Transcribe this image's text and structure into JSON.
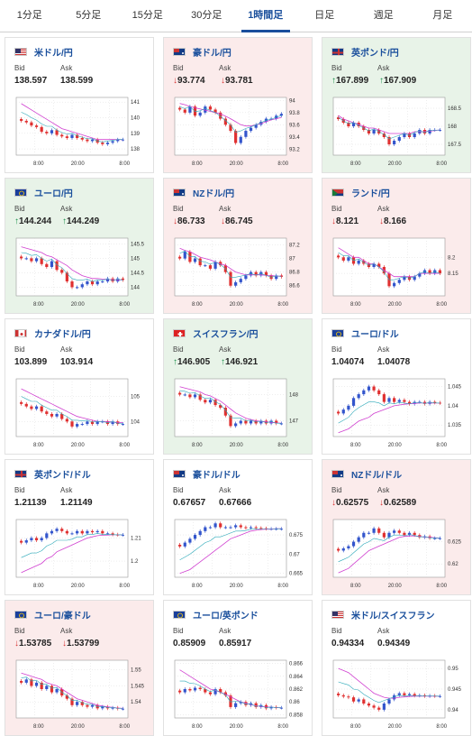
{
  "tabs": [
    "1分足",
    "5分足",
    "15分足",
    "30分足",
    "1時間足",
    "日足",
    "週足",
    "月足"
  ],
  "active_tab": "1時間足",
  "labels": {
    "bid": "Bid",
    "ask": "Ask"
  },
  "colors": {
    "up": "#19904a",
    "down": "#d83030",
    "ma": "#d040d0",
    "candle_up": "#3355cc",
    "candle_down": "#e03030"
  },
  "cards": [
    {
      "title": "米ドル/円",
      "trend": "flat",
      "bid": "138.597",
      "ask": "138.599",
      "flag": "us-flag",
      "chart_data": {
        "type": "candlestick",
        "x_ticks": [
          "8:00",
          "20:00",
          "8:00"
        ],
        "y_ticks": [
          "141",
          "140",
          "139",
          "138"
        ],
        "y_range": [
          137.6,
          141.3
        ],
        "closes": [
          139.8,
          139.7,
          139.5,
          139.4,
          139.1,
          139.0,
          139.2,
          138.9,
          138.8,
          138.7,
          138.9,
          138.7,
          138.6,
          138.5,
          138.6,
          138.4,
          138.3,
          138.4,
          138.5,
          138.6,
          138.6
        ],
        "ma": [
          140.9,
          140.7,
          140.5,
          140.3,
          140.1,
          139.9,
          139.7,
          139.5,
          139.3,
          139.2,
          139.1,
          139.0,
          138.9,
          138.8,
          138.7,
          138.6,
          138.6,
          138.6,
          138.6,
          138.6,
          138.6
        ]
      }
    },
    {
      "title": "豪ドル/円",
      "trend": "down",
      "bid": "93.774",
      "ask": "93.781",
      "flag": "au-flag",
      "chart_data": {
        "type": "candlestick",
        "x_ticks": [
          "8:00",
          "20:00",
          "8:00"
        ],
        "y_ticks": [
          "94",
          "93.8",
          "93.6",
          "93.4",
          "93.2"
        ],
        "y_range": [
          93.1,
          94.05
        ],
        "closes": [
          93.85,
          93.8,
          93.9,
          93.75,
          93.8,
          93.9,
          93.85,
          93.8,
          93.7,
          93.6,
          93.5,
          93.3,
          93.4,
          93.5,
          93.55,
          93.6,
          93.65,
          93.7,
          93.7,
          93.75,
          93.78
        ],
        "ma": [
          93.95,
          93.93,
          93.9,
          93.88,
          93.86,
          93.84,
          93.82,
          93.8,
          93.78,
          93.74,
          93.7,
          93.65,
          93.6,
          93.58,
          93.58,
          93.6,
          93.62,
          93.65,
          93.68,
          93.7,
          93.72
        ]
      }
    },
    {
      "title": "英ポンド/円",
      "trend": "up",
      "bid": "167.899",
      "ask": "167.909",
      "flag": "uk-flag",
      "chart_data": {
        "type": "candlestick",
        "x_ticks": [
          "8:00",
          "20:00",
          "8:00"
        ],
        "y_ticks": [
          "168.5",
          "168",
          "167.5"
        ],
        "y_range": [
          167.2,
          168.8
        ],
        "closes": [
          168.2,
          168.1,
          168.0,
          168.1,
          168.0,
          167.9,
          167.8,
          167.9,
          167.8,
          167.7,
          167.5,
          167.6,
          167.7,
          167.8,
          167.7,
          167.8,
          167.9,
          167.8,
          167.9,
          167.9,
          167.9
        ],
        "ma": [
          168.3,
          168.2,
          168.15,
          168.1,
          168.05,
          168.0,
          167.95,
          167.95,
          167.9,
          167.85,
          167.8,
          167.8,
          167.8,
          167.8,
          167.8,
          167.85,
          167.85,
          167.85,
          167.87,
          167.88,
          167.9
        ]
      }
    },
    {
      "title": "ユーロ/円",
      "trend": "up",
      "bid": "144.244",
      "ask": "144.249",
      "flag": "eu-flag",
      "chart_data": {
        "type": "candlestick",
        "x_ticks": [
          "8:00",
          "20:00",
          "8:00"
        ],
        "y_ticks": [
          "145.5",
          "145",
          "144.5",
          "144"
        ],
        "y_range": [
          143.7,
          145.7
        ],
        "closes": [
          145.0,
          145.0,
          144.9,
          145.0,
          144.8,
          144.7,
          144.9,
          144.6,
          144.5,
          144.2,
          144.0,
          144.0,
          144.1,
          144.2,
          144.1,
          144.2,
          144.2,
          144.3,
          144.2,
          144.3,
          144.25
        ],
        "ma": [
          145.4,
          145.35,
          145.3,
          145.25,
          145.2,
          145.1,
          145.05,
          144.95,
          144.85,
          144.75,
          144.6,
          144.5,
          144.4,
          144.35,
          144.3,
          144.3,
          144.28,
          144.27,
          144.26,
          144.25,
          144.25
        ]
      }
    },
    {
      "title": "NZドル/円",
      "trend": "down",
      "bid": "86.733",
      "ask": "86.745",
      "flag": "nz-flag",
      "chart_data": {
        "type": "candlestick",
        "x_ticks": [
          "8:00",
          "20:00",
          "8:00"
        ],
        "y_ticks": [
          "87.2",
          "87",
          "86.8",
          "86.6"
        ],
        "y_range": [
          86.45,
          87.3
        ],
        "closes": [
          87.0,
          87.1,
          86.95,
          87.0,
          86.9,
          86.9,
          86.85,
          86.95,
          86.9,
          86.8,
          86.6,
          86.65,
          86.7,
          86.75,
          86.8,
          86.75,
          86.8,
          86.75,
          86.7,
          86.75,
          86.73
        ],
        "ma": [
          87.15,
          87.12,
          87.1,
          87.06,
          87.02,
          87.0,
          86.98,
          86.95,
          86.92,
          86.9,
          86.85,
          86.8,
          86.78,
          86.76,
          86.76,
          86.76,
          86.76,
          86.75,
          86.75,
          86.74,
          86.74
        ]
      }
    },
    {
      "title": "ランド/円",
      "trend": "down",
      "bid": "8.121",
      "ask": "8.166",
      "flag": "za-flag",
      "chart_data": {
        "type": "candlestick",
        "x_ticks": [
          "8:00",
          "20:00",
          "8:00"
        ],
        "y_ticks": [
          "8.2",
          "8.15"
        ],
        "y_range": [
          8.08,
          8.26
        ],
        "closes": [
          8.2,
          8.19,
          8.2,
          8.18,
          8.19,
          8.18,
          8.17,
          8.18,
          8.17,
          8.15,
          8.11,
          8.12,
          8.13,
          8.14,
          8.13,
          8.14,
          8.15,
          8.16,
          8.15,
          8.16,
          8.15
        ],
        "ma": [
          8.23,
          8.22,
          8.21,
          8.2,
          8.2,
          8.19,
          8.18,
          8.18,
          8.17,
          8.16,
          8.15,
          8.14,
          8.14,
          8.14,
          8.14,
          8.14,
          8.15,
          8.15,
          8.15,
          8.15,
          8.15
        ]
      }
    },
    {
      "title": "カナダドル/円",
      "trend": "flat",
      "bid": "103.899",
      "ask": "103.914",
      "flag": "ca-flag",
      "chart_data": {
        "type": "candlestick",
        "x_ticks": [
          "8:00",
          "20:00",
          "8:00"
        ],
        "y_ticks": [
          "105",
          "104"
        ],
        "y_range": [
          103.4,
          105.7
        ],
        "closes": [
          104.7,
          104.6,
          104.5,
          104.6,
          104.4,
          104.3,
          104.2,
          104.3,
          104.1,
          104.0,
          103.8,
          103.9,
          103.9,
          104.0,
          103.9,
          104.0,
          104.0,
          103.9,
          104.0,
          103.9,
          103.9
        ],
        "ma": [
          105.3,
          105.2,
          105.1,
          105.0,
          104.9,
          104.8,
          104.7,
          104.6,
          104.5,
          104.4,
          104.3,
          104.2,
          104.15,
          104.1,
          104.05,
          104.0,
          104.0,
          104.0,
          103.98,
          103.96,
          103.95
        ]
      }
    },
    {
      "title": "スイスフラン/円",
      "trend": "up",
      "bid": "146.905",
      "ask": "146.921",
      "flag": "ch-flag",
      "chart_data": {
        "type": "candlestick",
        "x_ticks": [
          "8:00",
          "20:00",
          "8:00"
        ],
        "y_ticks": [
          "148",
          "147"
        ],
        "y_range": [
          146.4,
          148.6
        ],
        "closes": [
          148.0,
          148.0,
          147.9,
          148.0,
          147.8,
          147.7,
          147.8,
          147.6,
          147.5,
          147.2,
          146.8,
          146.9,
          147.0,
          146.9,
          147.0,
          146.9,
          147.0,
          146.9,
          147.0,
          146.9,
          146.9
        ],
        "ma": [
          148.3,
          148.25,
          148.2,
          148.15,
          148.1,
          148.0,
          147.95,
          147.85,
          147.75,
          147.6,
          147.45,
          147.3,
          147.2,
          147.1,
          147.05,
          147.0,
          146.98,
          146.96,
          146.94,
          146.92,
          146.91
        ]
      }
    },
    {
      "title": "ユーロ/ドル",
      "trend": "flat",
      "bid": "1.04074",
      "ask": "1.04078",
      "flag": "eu-us-flag",
      "chart_data": {
        "type": "candlestick",
        "x_ticks": [
          "8:00",
          "20:00",
          "8:00"
        ],
        "y_ticks": [
          "1.045",
          "1.04",
          "1.035"
        ],
        "y_range": [
          1.032,
          1.047
        ],
        "closes": [
          1.038,
          1.039,
          1.04,
          1.042,
          1.043,
          1.044,
          1.045,
          1.044,
          1.043,
          1.041,
          1.042,
          1.041,
          1.0415,
          1.041,
          1.0405,
          1.041,
          1.041,
          1.0405,
          1.041,
          1.0408,
          1.0407
        ],
        "ma": [
          1.033,
          1.0335,
          1.034,
          1.035,
          1.036,
          1.0365,
          1.037,
          1.038,
          1.0385,
          1.039,
          1.0395,
          1.04,
          1.0402,
          1.0404,
          1.0405,
          1.0406,
          1.0407,
          1.0407,
          1.0407,
          1.0407,
          1.0407
        ]
      }
    },
    {
      "title": "英ポンド/ドル",
      "trend": "flat",
      "bid": "1.21139",
      "ask": "1.21149",
      "flag": "uk-us-flag",
      "chart_data": {
        "type": "candlestick",
        "x_ticks": [
          "8:00",
          "20:00",
          "8:00"
        ],
        "y_ticks": [
          "1.21",
          "1.2"
        ],
        "y_range": [
          1.193,
          1.218
        ],
        "closes": [
          1.208,
          1.209,
          1.21,
          1.209,
          1.21,
          1.212,
          1.213,
          1.214,
          1.213,
          1.212,
          1.212,
          1.213,
          1.212,
          1.213,
          1.2125,
          1.213,
          1.212,
          1.212,
          1.2115,
          1.2114,
          1.2114
        ],
        "ma": [
          1.195,
          1.196,
          1.197,
          1.198,
          1.199,
          1.201,
          1.202,
          1.204,
          1.205,
          1.206,
          1.207,
          1.208,
          1.209,
          1.21,
          1.2105,
          1.211,
          1.2112,
          1.2113,
          1.2114,
          1.2114,
          1.2114
        ]
      }
    },
    {
      "title": "豪ドル/ドル",
      "trend": "flat",
      "bid": "0.67657",
      "ask": "0.67666",
      "flag": "au-us-flag",
      "chart_data": {
        "type": "candlestick",
        "x_ticks": [
          "8:00",
          "20:00",
          "8:00"
        ],
        "y_ticks": [
          "0.675",
          "0.67",
          "0.665"
        ],
        "y_range": [
          0.664,
          0.679
        ],
        "closes": [
          0.672,
          0.673,
          0.674,
          0.675,
          0.676,
          0.677,
          0.677,
          0.678,
          0.677,
          0.677,
          0.677,
          0.6775,
          0.677,
          0.6768,
          0.677,
          0.6768,
          0.6767,
          0.6766,
          0.6766,
          0.6766,
          0.6766
        ],
        "ma": [
          0.665,
          0.6655,
          0.666,
          0.667,
          0.668,
          0.669,
          0.67,
          0.671,
          0.672,
          0.673,
          0.674,
          0.6745,
          0.675,
          0.6755,
          0.676,
          0.6762,
          0.6764,
          0.6765,
          0.6765,
          0.6766,
          0.6766
        ]
      }
    },
    {
      "title": "NZドル/ドル",
      "trend": "down",
      "bid": "0.62575",
      "ask": "0.62589",
      "flag": "nz-us-flag",
      "chart_data": {
        "type": "candlestick",
        "x_ticks": [
          "8:00",
          "20:00",
          "8:00"
        ],
        "y_ticks": [
          "0.625",
          "0.62"
        ],
        "y_range": [
          0.617,
          0.63
        ],
        "closes": [
          0.623,
          0.6235,
          0.624,
          0.625,
          0.626,
          0.627,
          0.627,
          0.628,
          0.627,
          0.626,
          0.627,
          0.6275,
          0.627,
          0.6265,
          0.627,
          0.6265,
          0.626,
          0.6262,
          0.6258,
          0.6258,
          0.6258
        ],
        "ma": [
          0.618,
          0.6185,
          0.619,
          0.62,
          0.621,
          0.622,
          0.623,
          0.6235,
          0.624,
          0.6245,
          0.625,
          0.6255,
          0.626,
          0.6262,
          0.6263,
          0.6263,
          0.6262,
          0.626,
          0.626,
          0.6259,
          0.6258
        ]
      }
    },
    {
      "title": "ユーロ/豪ドル",
      "trend": "down",
      "bid": "1.53785",
      "ask": "1.53799",
      "flag": "eu-au-flag",
      "chart_data": {
        "type": "candlestick",
        "x_ticks": [
          "8:00",
          "20:00",
          "8:00"
        ],
        "y_ticks": [
          "1.55",
          "1.545",
          "1.54"
        ],
        "y_range": [
          1.535,
          1.553
        ],
        "closes": [
          1.546,
          1.547,
          1.545,
          1.546,
          1.544,
          1.545,
          1.543,
          1.544,
          1.542,
          1.541,
          1.539,
          1.54,
          1.539,
          1.5385,
          1.539,
          1.538,
          1.5385,
          1.538,
          1.5382,
          1.5379,
          1.5379
        ],
        "ma": [
          1.549,
          1.5485,
          1.548,
          1.5475,
          1.547,
          1.546,
          1.5455,
          1.545,
          1.544,
          1.543,
          1.542,
          1.541,
          1.5405,
          1.54,
          1.5395,
          1.539,
          1.5387,
          1.5385,
          1.5383,
          1.5381,
          1.538
        ]
      }
    },
    {
      "title": "ユーロ/英ポンド",
      "trend": "flat",
      "bid": "0.85909",
      "ask": "0.85917",
      "flag": "eu-uk-flag",
      "chart_data": {
        "type": "candlestick",
        "x_ticks": [
          "8:00",
          "20:00",
          "8:00"
        ],
        "y_ticks": [
          "0.866",
          "0.864",
          "0.862",
          "0.86",
          "0.858"
        ],
        "y_range": [
          0.8575,
          0.8665
        ],
        "closes": [
          0.8615,
          0.862,
          0.8618,
          0.8622,
          0.862,
          0.8615,
          0.8612,
          0.862,
          0.8615,
          0.861,
          0.8592,
          0.8598,
          0.86,
          0.8595,
          0.8598,
          0.8592,
          0.8595,
          0.859,
          0.8592,
          0.8591,
          0.8591
        ],
        "ma": [
          0.865,
          0.8645,
          0.864,
          0.8635,
          0.863,
          0.8625,
          0.862,
          0.8618,
          0.8615,
          0.8612,
          0.8608,
          0.8604,
          0.86,
          0.8598,
          0.8596,
          0.8594,
          0.8593,
          0.8592,
          0.8592,
          0.8591,
          0.8591
        ]
      }
    },
    {
      "title": "米ドル/スイスフラン",
      "trend": "flat",
      "bid": "0.94334",
      "ask": "0.94349",
      "flag": "us-ch-flag",
      "chart_data": {
        "type": "candlestick",
        "x_ticks": [
          "8:00",
          "20:00",
          "8:00"
        ],
        "y_ticks": [
          "0.95",
          "0.945",
          "0.94"
        ],
        "y_range": [
          0.938,
          0.952
        ],
        "closes": [
          0.9435,
          0.9432,
          0.943,
          0.942,
          0.9425,
          0.9415,
          0.941,
          0.9405,
          0.94,
          0.9415,
          0.9425,
          0.9435,
          0.944,
          0.9435,
          0.9438,
          0.9434,
          0.9435,
          0.9433,
          0.9434,
          0.9433,
          0.9433
        ],
        "ma": [
          0.95,
          0.9495,
          0.949,
          0.948,
          0.947,
          0.946,
          0.945,
          0.944,
          0.9435,
          0.943,
          0.9428,
          0.9428,
          0.943,
          0.9431,
          0.9432,
          0.9433,
          0.9433,
          0.9433,
          0.9433,
          0.9433,
          0.9433
        ]
      }
    }
  ]
}
